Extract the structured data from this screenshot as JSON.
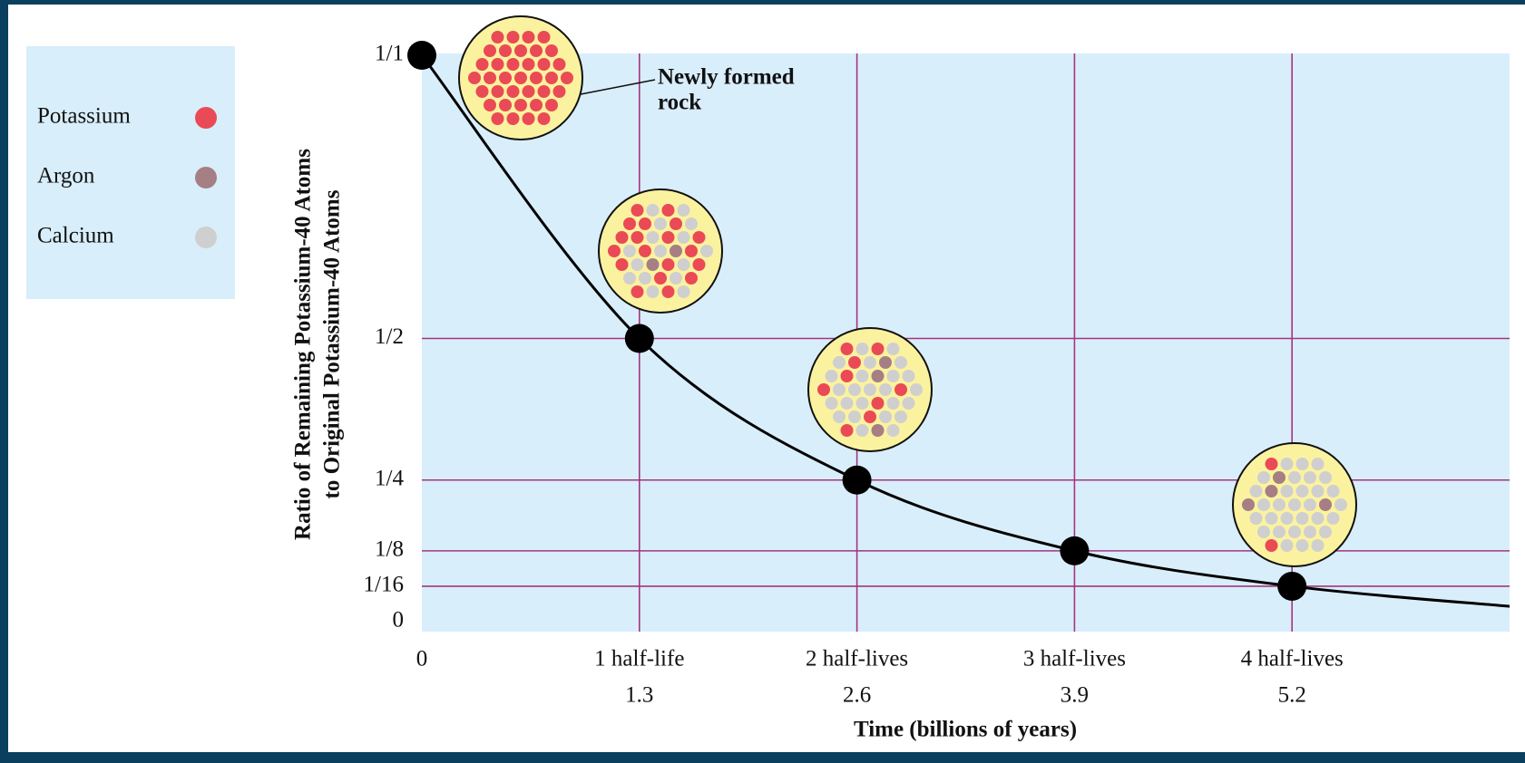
{
  "chart_data": {
    "type": "line",
    "ylabel": [
      "Ratio of Remaining Potassium-40 Atoms",
      "to Original Potassium-40 Atoms"
    ],
    "xlabel": "Time (billions of years)",
    "annotation": [
      "Newly formed",
      "rock"
    ],
    "x": [
      0,
      1.3,
      2.6,
      3.9,
      5.2
    ],
    "values": [
      1,
      0.5,
      0.25,
      0.125,
      0.0625
    ],
    "curve": {
      "x": [
        0,
        1.3,
        2.6,
        3.9,
        5.2,
        6.5
      ],
      "values": [
        1,
        0.5,
        0.25,
        0.125,
        0.0625,
        0.027
      ]
    },
    "xlim": [
      0,
      6.5
    ],
    "ylim": [
      0,
      1
    ],
    "xticks": [
      0,
      1.3,
      2.6,
      3.9,
      5.2
    ],
    "xtick_titles": [
      null,
      "1 half-life",
      "2 half-lives",
      "3 half-lives",
      "4 half-lives"
    ],
    "yticks": [
      {
        "value": 1,
        "label": "1/1"
      },
      {
        "value": 0.5,
        "label": "1/2"
      },
      {
        "value": 0.25,
        "label": "1/4"
      },
      {
        "value": 0.125,
        "label": "1/8"
      },
      {
        "value": 0.0625,
        "label": "1/16"
      },
      0
    ],
    "grid": true,
    "grid_color": "#a3357f",
    "plot_background": "#d9eefb",
    "line_color": "#000000",
    "legend_position": "upper left",
    "legend": [
      {
        "name": "Potassium",
        "color": "#ea4a55"
      },
      {
        "name": "Argon",
        "color": "#a57f84"
      },
      {
        "name": "Calcium",
        "color": "#cfcfcf"
      }
    ]
  }
}
